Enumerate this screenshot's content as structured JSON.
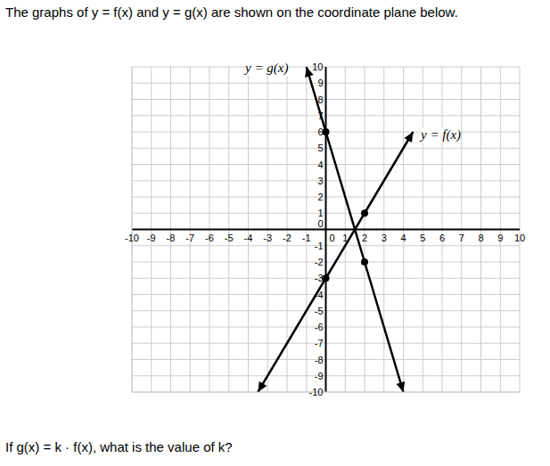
{
  "chart_data": {
    "type": "line",
    "title": "The graphs of y = f(x) and y = g(x) are shown on the coordinate plane below.",
    "annotations": [
      "If g(x) = k · f(x), what is the value of k?"
    ],
    "series": [
      {
        "name": "y = f(x)",
        "color": "#000000",
        "x": [
          -3.5,
          0,
          2,
          4.5
        ],
        "values": [
          -10,
          -3,
          1,
          6
        ]
      },
      {
        "name": "y = g(x)",
        "color": "#000000",
        "x": [
          -1,
          0,
          2,
          4
        ],
        "values": [
          10,
          6,
          -2,
          -10
        ]
      }
    ],
    "xlim": [
      -10,
      10
    ],
    "ylim": [
      -10,
      10
    ],
    "xticks": [
      -10,
      -9,
      -8,
      -7,
      -6,
      -5,
      -4,
      -3,
      -2,
      -1,
      0,
      1,
      2,
      3,
      4,
      5,
      6,
      7,
      8,
      9,
      10
    ],
    "yticks": [
      -10,
      -9,
      -8,
      -7,
      -6,
      -5,
      -4,
      -3,
      -2,
      -1,
      0,
      1,
      2,
      3,
      4,
      5,
      6,
      7,
      8,
      9,
      10
    ],
    "grid": true,
    "marker": "circle"
  }
}
